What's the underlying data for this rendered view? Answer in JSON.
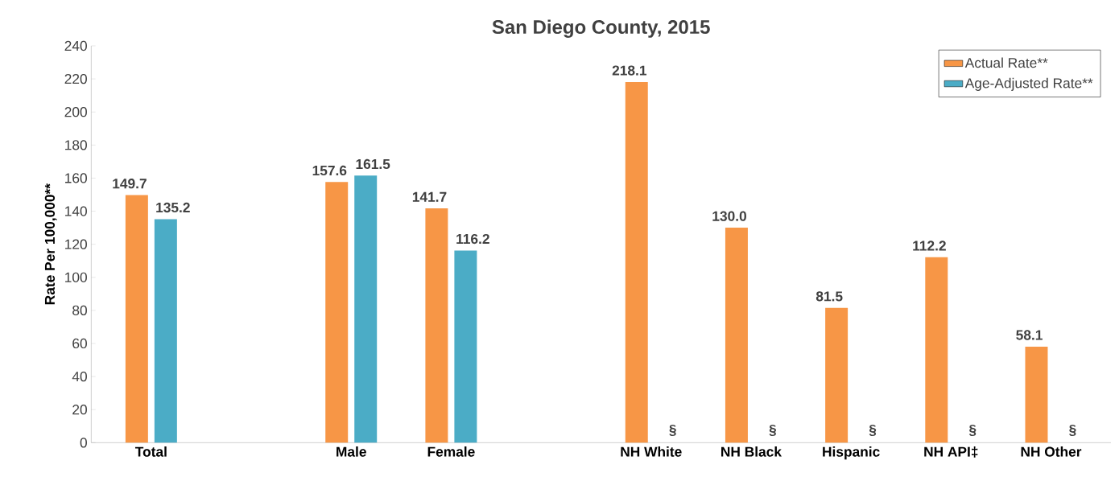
{
  "chart_data": {
    "type": "bar",
    "title": "San Diego County, 2015",
    "ylabel": "Rate Per 100,000**",
    "categories": [
      "Total",
      null,
      "Male",
      "Female",
      null,
      "NH White",
      "NH Black",
      "Hispanic",
      "NH API‡",
      "NH Other"
    ],
    "series": [
      {
        "name": "Actual Rate**",
        "color": "#f79646",
        "values": [
          149.7,
          null,
          157.6,
          141.7,
          null,
          218.1,
          130.0,
          81.5,
          112.2,
          58.1
        ],
        "value_labels": [
          "149.7",
          null,
          "157.6",
          "141.7",
          null,
          "218.1",
          "130.0",
          "81.5",
          "112.2",
          "58.1"
        ]
      },
      {
        "name": "Age-Adjusted Rate**",
        "color": "#4bacc6",
        "values": [
          135.2,
          null,
          161.5,
          116.2,
          null,
          null,
          null,
          null,
          null,
          null
        ],
        "value_labels": [
          "135.2",
          null,
          "161.5",
          "116.2",
          null,
          "§",
          "§",
          "§",
          "§",
          "§"
        ]
      }
    ],
    "ylim": [
      0,
      240
    ],
    "yticks": [
      0,
      20,
      40,
      60,
      80,
      100,
      120,
      140,
      160,
      180,
      200,
      220,
      240
    ],
    "grid": false,
    "legend": "top right"
  }
}
